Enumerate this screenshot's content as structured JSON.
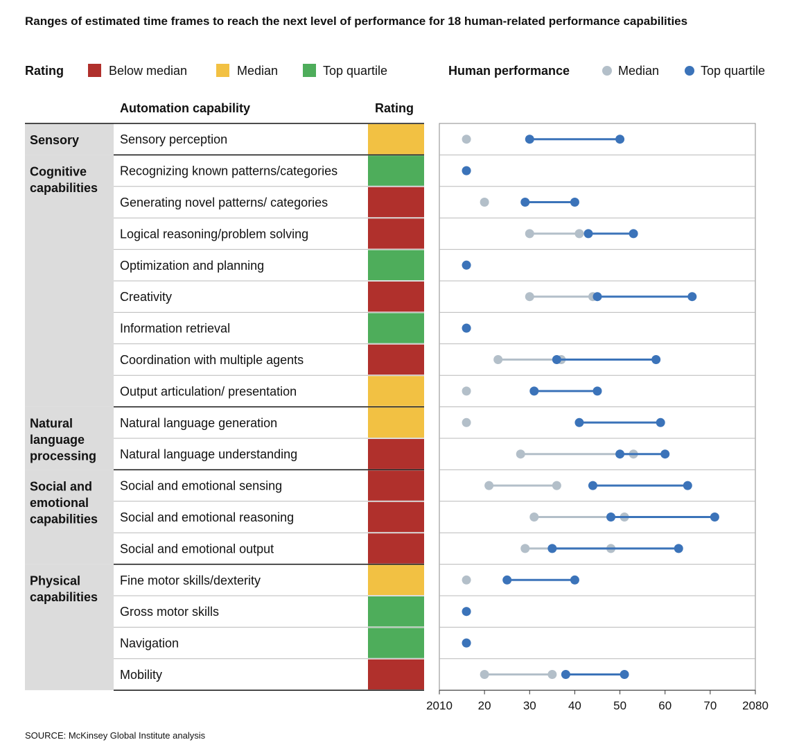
{
  "title": "Ranges of estimated time frames to reach the next level of performance for 18 human-related performance capabilities",
  "legend": {
    "rating_label": "Rating",
    "ratings": [
      {
        "label": "Below median",
        "color": "#b0302c"
      },
      {
        "label": "Median",
        "color": "#f2c143"
      },
      {
        "label": "Top quartile",
        "color": "#4ead5b"
      }
    ],
    "human_label": "Human performance",
    "human": [
      {
        "label": "Median",
        "color": "#b3bfc9"
      },
      {
        "label": "Top quartile",
        "color": "#3b73b9"
      }
    ]
  },
  "headers": {
    "capability": "Automation capability",
    "rating": "Rating"
  },
  "source": "SOURCE:  McKinsey Global Institute analysis",
  "chart_data": {
    "type": "dumbbell",
    "x_tick_labels": [
      "2010",
      "20",
      "30",
      "40",
      "50",
      "60",
      "70",
      "2080"
    ],
    "xlim": [
      2010,
      2080
    ],
    "groups": [
      {
        "name": "Sensory",
        "rows": 1
      },
      {
        "name": "Cognitive capabilities",
        "rows": 8
      },
      {
        "name": "Natural language processing",
        "rows": 2
      },
      {
        "name": "Social and emotional capabilities",
        "rows": 3
      },
      {
        "name": "Physical capabilities",
        "rows": 4
      }
    ],
    "series": [
      {
        "name": "Median"
      },
      {
        "name": "Top quartile"
      }
    ],
    "rows": [
      {
        "capability": "Sensory perception",
        "rating": "Median",
        "median": [
          2016,
          2016
        ],
        "top_quartile": [
          2030,
          2050
        ]
      },
      {
        "capability": "Recognizing known patterns/categories",
        "rating": "Top quartile",
        "median": [
          2016,
          2016
        ],
        "top_quartile": [
          2016,
          2016
        ]
      },
      {
        "capability": "Generating novel patterns/ categories",
        "rating": "Below median",
        "median": [
          2020,
          2020
        ],
        "top_quartile": [
          2029,
          2040
        ]
      },
      {
        "capability": "Logical reasoning/problem solving",
        "rating": "Below median",
        "median": [
          2030,
          2041
        ],
        "top_quartile": [
          2043,
          2053
        ]
      },
      {
        "capability": "Optimization and planning",
        "rating": "Top quartile",
        "median": [
          2016,
          2016
        ],
        "top_quartile": [
          2016,
          2016
        ]
      },
      {
        "capability": "Creativity",
        "rating": "Below median",
        "median": [
          2030,
          2044
        ],
        "top_quartile": [
          2045,
          2066
        ]
      },
      {
        "capability": "Information retrieval",
        "rating": "Top quartile",
        "median": [
          2016,
          2016
        ],
        "top_quartile": [
          2016,
          2016
        ]
      },
      {
        "capability": "Coordination with multiple agents",
        "rating": "Below median",
        "median": [
          2023,
          2037
        ],
        "top_quartile": [
          2036,
          2058
        ]
      },
      {
        "capability": "Output articulation/ presentation",
        "rating": "Median",
        "median": [
          2016,
          2016
        ],
        "top_quartile": [
          2031,
          2045
        ]
      },
      {
        "capability": "Natural language generation",
        "rating": "Median",
        "median": [
          2016,
          2016
        ],
        "top_quartile": [
          2041,
          2059
        ]
      },
      {
        "capability": "Natural language understanding",
        "rating": "Below median",
        "median": [
          2028,
          2053
        ],
        "top_quartile": [
          2050,
          2060
        ]
      },
      {
        "capability": "Social and emotional sensing",
        "rating": "Below median",
        "median": [
          2021,
          2036
        ],
        "top_quartile": [
          2044,
          2065
        ]
      },
      {
        "capability": "Social and emotional reasoning",
        "rating": "Below median",
        "median": [
          2031,
          2051
        ],
        "top_quartile": [
          2048,
          2071
        ]
      },
      {
        "capability": "Social and emotional output",
        "rating": "Below median",
        "median": [
          2029,
          2048
        ],
        "top_quartile": [
          2035,
          2063
        ]
      },
      {
        "capability": "Fine motor skills/dexterity",
        "rating": "Median",
        "median": [
          2016,
          2016
        ],
        "top_quartile": [
          2025,
          2040
        ]
      },
      {
        "capability": "Gross motor skills",
        "rating": "Top quartile",
        "median": [
          2016,
          2016
        ],
        "top_quartile": [
          2016,
          2016
        ]
      },
      {
        "capability": "Navigation",
        "rating": "Top quartile",
        "median": [
          2016,
          2016
        ],
        "top_quartile": [
          2016,
          2016
        ]
      },
      {
        "capability": "Mobility",
        "rating": "Below median",
        "median": [
          2020,
          2035
        ],
        "top_quartile": [
          2038,
          2051
        ]
      }
    ]
  }
}
